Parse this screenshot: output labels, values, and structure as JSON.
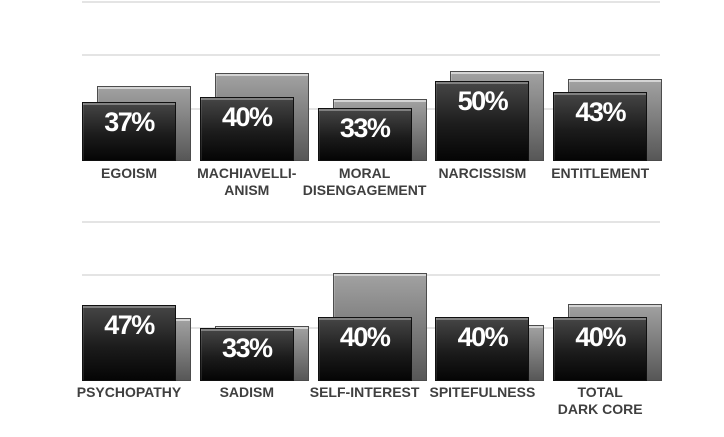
{
  "page": {
    "background": "#ffffff"
  },
  "chart_data": {
    "type": "bar",
    "unit": "percent",
    "ylim": [
      0,
      100
    ],
    "gridlines_percent": [
      33.3,
      66.7,
      100
    ],
    "grid": "on",
    "legend": "none",
    "series": [
      {
        "name": "score",
        "style": "dark-front-bar",
        "labels_shown": true
      },
      {
        "name": "comparison",
        "style": "gray-back-bar",
        "labels_shown": false,
        "note": "values estimated from bar heights; no data labels shown in image"
      }
    ],
    "rows": [
      {
        "categories": [
          {
            "key": "egoism",
            "label_lines": [
              "EGOISM"
            ],
            "score": 37,
            "score_label": "37%",
            "comparison": 47
          },
          {
            "key": "machiavellianism",
            "label_lines": [
              "MACHIAVELLI-",
              "ANISM"
            ],
            "score": 40,
            "score_label": "40%",
            "comparison": 55
          },
          {
            "key": "moral-disengagement",
            "label_lines": [
              "MORAL",
              "DISENGAGEMENT"
            ],
            "score": 33,
            "score_label": "33%",
            "comparison": 39
          },
          {
            "key": "narcissism",
            "label_lines": [
              "NARCISSISM"
            ],
            "score": 50,
            "score_label": "50%",
            "comparison": 56
          },
          {
            "key": "entitlement",
            "label_lines": [
              "ENTITLEMENT"
            ],
            "score": 43,
            "score_label": "43%",
            "comparison": 51
          }
        ]
      },
      {
        "categories": [
          {
            "key": "psychopathy",
            "label_lines": [
              "PSYCHOPATHY"
            ],
            "score": 47,
            "score_label": "47%",
            "comparison": 39
          },
          {
            "key": "sadism",
            "label_lines": [
              "SADISM"
            ],
            "score": 33,
            "score_label": "33%",
            "comparison": 34
          },
          {
            "key": "self-interest",
            "label_lines": [
              "SELF-INTEREST"
            ],
            "score": 40,
            "score_label": "40%",
            "comparison": 67
          },
          {
            "key": "spitefulness",
            "label_lines": [
              "SPITEFULNESS"
            ],
            "score": 40,
            "score_label": "40%",
            "comparison": 35
          },
          {
            "key": "total-dark-core",
            "label_lines": [
              "TOTAL",
              "DARK CORE"
            ],
            "score": 40,
            "score_label": "40%",
            "comparison": 48
          }
        ]
      }
    ],
    "colors": {
      "score_bar_top": "#464646",
      "score_bar_mid": "#1c1c1c",
      "score_bar_bottom": "#050505",
      "comparison_bar_top": "#a2a2a2",
      "comparison_bar_bottom": "#575757",
      "gridline": "#e4e4e4",
      "category_label_text": "#3f3f3f",
      "score_label_text": "#ffffff"
    }
  }
}
